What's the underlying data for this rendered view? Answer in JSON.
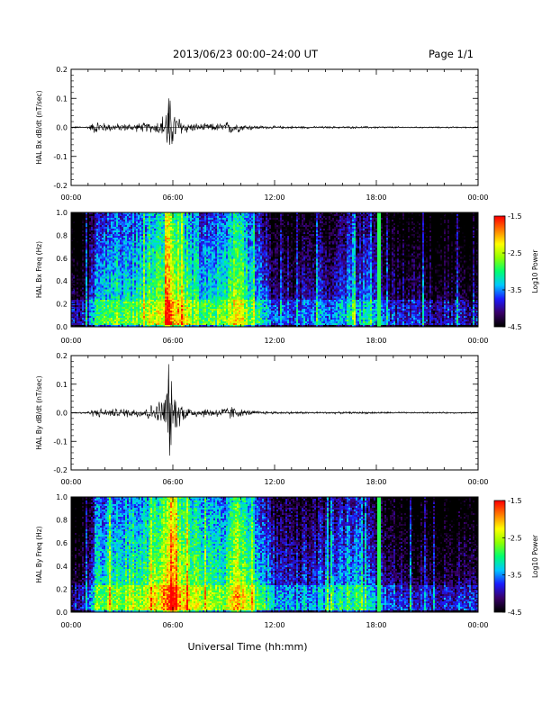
{
  "header": {
    "title": "2013/06/23  00:00–24:00 UT",
    "page": "Page 1/1"
  },
  "xlabel": "Universal Time (hh:mm)",
  "colors": {
    "waveform": "#000000",
    "background": "#ffffff",
    "colormap": [
      "#000000",
      "#3a006a",
      "#1b1bff",
      "#00c8ff",
      "#00ff70",
      "#90ff00",
      "#ffff00",
      "#ff7f00",
      "#ff0000"
    ]
  },
  "chart_data": [
    {
      "type": "line",
      "ylabel": "HAL Bx dB/dt (nT/sec)",
      "x_ticks": [
        "00:00",
        "06:00",
        "12:00",
        "18:00",
        "00:00"
      ],
      "xlim_hours": [
        0,
        24
      ],
      "ylim": [
        -0.2,
        0.2
      ],
      "y_ticks": [
        "-0.2",
        "-0.1",
        "0.0",
        "0.1",
        "0.2"
      ],
      "envelope": {
        "x_hours": [
          0,
          1.0,
          1.5,
          2.0,
          3.0,
          4.0,
          5.0,
          5.5,
          5.75,
          6.0,
          6.5,
          7.0,
          8.0,
          9.0,
          9.5,
          10.0,
          11.0,
          12.0,
          14.0,
          16.0,
          18.0,
          20.0,
          22.0,
          24.0
        ],
        "amplitude": [
          0.002,
          0.004,
          0.02,
          0.012,
          0.01,
          0.012,
          0.015,
          0.04,
          0.09,
          0.05,
          0.025,
          0.012,
          0.01,
          0.012,
          0.02,
          0.01,
          0.005,
          0.004,
          0.003,
          0.003,
          0.003,
          0.002,
          0.002,
          0.002
        ]
      },
      "peak": {
        "x_hours": 5.7,
        "max": 0.1,
        "min": -0.06
      }
    },
    {
      "type": "heatmap",
      "ylabel": "HAL Bx Freq (Hz)",
      "x_ticks": [
        "00:00",
        "06:00",
        "12:00",
        "18:00",
        "00:00"
      ],
      "xlim_hours": [
        0,
        24
      ],
      "ylim": [
        0,
        1.0
      ],
      "y_ticks": [
        "0.0",
        "0.2",
        "0.4",
        "0.6",
        "0.8",
        "1.0"
      ],
      "colorbar": {
        "label": "Log10 Power",
        "range": [
          -4.5,
          -1.5
        ],
        "ticks": [
          "-1.5",
          "-2.5",
          "-3.5",
          "-4.5"
        ]
      },
      "activity": {
        "x_hours": [
          0,
          1.0,
          1.5,
          2.5,
          3.5,
          4.5,
          5.25,
          5.75,
          6.25,
          7.0,
          8.0,
          9.0,
          9.75,
          10.5,
          11.5,
          12.0,
          14.0,
          15.0,
          16.5,
          17.5,
          18.5,
          20.0,
          24.0
        ],
        "level": [
          -4.3,
          -4.0,
          -3.2,
          -3.0,
          -3.0,
          -2.9,
          -2.7,
          -1.9,
          -2.3,
          -2.8,
          -3.1,
          -3.0,
          -2.4,
          -3.0,
          -3.5,
          -3.9,
          -3.9,
          -3.7,
          -3.4,
          -3.6,
          -4.0,
          -4.1,
          -4.2
        ]
      },
      "vertical_line_hours": 18.1
    },
    {
      "type": "line",
      "ylabel": "HAL By dB/dt (nT/sec)",
      "x_ticks": [
        "00:00",
        "06:00",
        "12:00",
        "18:00",
        "00:00"
      ],
      "xlim_hours": [
        0,
        24
      ],
      "ylim": [
        -0.2,
        0.2
      ],
      "y_ticks": [
        "-0.2",
        "-0.1",
        "0.0",
        "0.1",
        "0.2"
      ],
      "envelope": {
        "x_hours": [
          0,
          1.0,
          1.5,
          2.0,
          3.0,
          4.0,
          5.0,
          5.5,
          5.75,
          6.0,
          6.5,
          7.0,
          8.0,
          9.0,
          9.5,
          10.0,
          11.0,
          12.0,
          14.0,
          16.0,
          18.0,
          20.0,
          22.0,
          24.0
        ],
        "amplitude": [
          0.002,
          0.004,
          0.015,
          0.01,
          0.012,
          0.014,
          0.025,
          0.05,
          0.13,
          0.06,
          0.03,
          0.015,
          0.012,
          0.014,
          0.02,
          0.01,
          0.005,
          0.004,
          0.003,
          0.003,
          0.003,
          0.002,
          0.002,
          0.002
        ]
      },
      "peak": {
        "x_hours": 5.7,
        "max": 0.17,
        "min": -0.15
      }
    },
    {
      "type": "heatmap",
      "ylabel": "HAL By Freq (Hz)",
      "x_ticks": [
        "00:00",
        "06:00",
        "12:00",
        "18:00",
        "00:00"
      ],
      "xlim_hours": [
        0,
        24
      ],
      "ylim": [
        0,
        1.0
      ],
      "y_ticks": [
        "0.0",
        "0.2",
        "0.4",
        "0.6",
        "0.8",
        "1.0"
      ],
      "colorbar": {
        "label": "Log10 Power",
        "range": [
          -4.5,
          -1.5
        ],
        "ticks": [
          "-1.5",
          "-2.5",
          "-3.5",
          "-4.5"
        ]
      },
      "activity": {
        "x_hours": [
          0,
          1.0,
          1.5,
          2.5,
          3.5,
          4.5,
          5.25,
          5.75,
          6.25,
          7.0,
          8.0,
          9.0,
          9.75,
          10.5,
          11.5,
          12.0,
          14.0,
          15.0,
          16.5,
          17.5,
          18.5,
          20.0,
          24.0
        ],
        "level": [
          -4.2,
          -3.9,
          -3.0,
          -2.8,
          -2.8,
          -2.7,
          -2.4,
          -1.7,
          -2.1,
          -2.6,
          -2.9,
          -2.8,
          -2.1,
          -2.8,
          -3.3,
          -3.7,
          -3.7,
          -3.5,
          -3.2,
          -3.4,
          -3.9,
          -4.0,
          -4.1
        ]
      },
      "vertical_line_hours": 18.1
    }
  ]
}
